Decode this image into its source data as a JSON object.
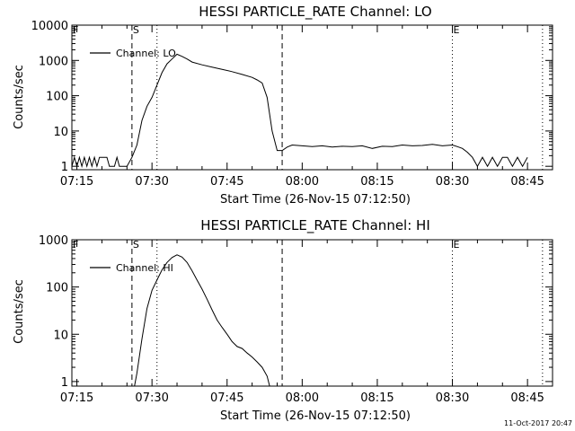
{
  "chart_data": [
    {
      "type": "line",
      "title": "HESSI PARTICLE_RATE Channel: LO",
      "xlabel": "Start Time (26-Nov-15 07:12:50)",
      "ylabel": "Counts/sec",
      "yscale": "log",
      "xlim": [
        "07:14",
        "08:50"
      ],
      "ylim": [
        0.8,
        10000
      ],
      "x_ticks": [
        "07:15",
        "07:30",
        "07:45",
        "08:00",
        "08:15",
        "08:30",
        "08:45"
      ],
      "y_ticks": [
        "1",
        "10",
        "100",
        "1000",
        "10000"
      ],
      "markers": [
        {
          "label": "F",
          "time": "07:14",
          "style": "dotted"
        },
        {
          "label": "S",
          "time": "07:26",
          "style": "dashed"
        },
        {
          "label": "",
          "time": "07:31",
          "style": "dotted"
        },
        {
          "label": "",
          "time": "07:56",
          "style": "dashed"
        },
        {
          "label": "E",
          "time": "08:30",
          "style": "dotted"
        },
        {
          "label": "",
          "time": "08:48",
          "style": "dotted"
        }
      ],
      "legend": "top-left",
      "series": [
        {
          "name": "Channel: LO",
          "points": [
            [
              "07:14",
              1
            ],
            [
              "07:14.5",
              1.8
            ],
            [
              "07:15",
              1
            ],
            [
              "07:15.5",
              1.8
            ],
            [
              "07:16",
              1
            ],
            [
              "07:16.5",
              1.8
            ],
            [
              "07:17",
              1
            ],
            [
              "07:17.5",
              1.8
            ],
            [
              "07:18",
              1
            ],
            [
              "07:18.5",
              1.8
            ],
            [
              "07:19",
              1
            ],
            [
              "07:19.5",
              1.8
            ],
            [
              "07:20",
              1.8
            ],
            [
              "07:21",
              1.8
            ],
            [
              "07:21.5",
              1
            ],
            [
              "07:22.5",
              1
            ],
            [
              "07:23",
              1.8
            ],
            [
              "07:23.5",
              1
            ],
            [
              "07:25",
              1
            ],
            [
              "07:26",
              1.8
            ],
            [
              "07:27",
              4
            ],
            [
              "07:28",
              20
            ],
            [
              "07:29",
              50
            ],
            [
              "07:30",
              90
            ],
            [
              "07:31",
              200
            ],
            [
              "07:32",
              450
            ],
            [
              "07:33",
              800
            ],
            [
              "07:34",
              1100
            ],
            [
              "07:35",
              1500
            ],
            [
              "07:36",
              1300
            ],
            [
              "07:37",
              1100
            ],
            [
              "07:38",
              900
            ],
            [
              "07:40",
              750
            ],
            [
              "07:42",
              650
            ],
            [
              "07:44",
              560
            ],
            [
              "07:46",
              480
            ],
            [
              "07:48",
              400
            ],
            [
              "07:50",
              330
            ],
            [
              "07:51",
              280
            ],
            [
              "07:52",
              230
            ],
            [
              "07:53",
              90
            ],
            [
              "07:54",
              10
            ],
            [
              "07:55",
              2.8
            ],
            [
              "07:56",
              2.8
            ],
            [
              "07:57",
              3.5
            ],
            [
              "07:58",
              4
            ],
            [
              "08:00",
              3.8
            ],
            [
              "08:02",
              3.6
            ],
            [
              "08:04",
              3.8
            ],
            [
              "08:06",
              3.5
            ],
            [
              "08:08",
              3.7
            ],
            [
              "08:10",
              3.6
            ],
            [
              "08:12",
              3.8
            ],
            [
              "08:14",
              3.2
            ],
            [
              "08:16",
              3.7
            ],
            [
              "08:18",
              3.6
            ],
            [
              "08:20",
              4
            ],
            [
              "08:22",
              3.8
            ],
            [
              "08:24",
              3.9
            ],
            [
              "08:26",
              4.2
            ],
            [
              "08:28",
              3.8
            ],
            [
              "08:30",
              4
            ],
            [
              "08:31",
              3.6
            ],
            [
              "08:32",
              3.2
            ],
            [
              "08:33",
              2.5
            ],
            [
              "08:34",
              1.8
            ],
            [
              "08:35",
              1
            ],
            [
              "08:36",
              1.8
            ],
            [
              "08:37",
              1
            ],
            [
              "08:38",
              1.8
            ],
            [
              "08:39",
              1
            ],
            [
              "08:40",
              1.8
            ],
            [
              "08:41",
              1.8
            ],
            [
              "08:42",
              1
            ],
            [
              "08:43",
              1.8
            ],
            [
              "08:44",
              1
            ],
            [
              "08:45",
              1.8
            ]
          ]
        }
      ]
    },
    {
      "type": "line",
      "title": "HESSI PARTICLE_RATE Channel: HI",
      "xlabel": "Start Time (26-Nov-15 07:12:50)",
      "ylabel": "Counts/sec",
      "yscale": "log",
      "xlim": [
        "07:14",
        "08:50"
      ],
      "ylim": [
        0.8,
        1000
      ],
      "x_ticks": [
        "07:15",
        "07:30",
        "07:45",
        "08:00",
        "08:15",
        "08:30",
        "08:45"
      ],
      "y_ticks": [
        "1",
        "10",
        "100",
        "1000"
      ],
      "markers": [
        {
          "label": "F",
          "time": "07:14",
          "style": "dotted"
        },
        {
          "label": "S",
          "time": "07:26",
          "style": "dashed"
        },
        {
          "label": "",
          "time": "07:31",
          "style": "dotted"
        },
        {
          "label": "",
          "time": "07:56",
          "style": "dashed"
        },
        {
          "label": "E",
          "time": "08:30",
          "style": "dotted"
        },
        {
          "label": "",
          "time": "08:48",
          "style": "dotted"
        }
      ],
      "legend": "top-left",
      "series": [
        {
          "name": "Channel: HI",
          "points": [
            [
              "07:26.5",
              0.8
            ],
            [
              "07:27",
              1.5
            ],
            [
              "07:28",
              8
            ],
            [
              "07:29",
              35
            ],
            [
              "07:30",
              85
            ],
            [
              "07:31",
              140
            ],
            [
              "07:32",
              230
            ],
            [
              "07:33",
              330
            ],
            [
              "07:34",
              420
            ],
            [
              "07:35",
              480
            ],
            [
              "07:36",
              430
            ],
            [
              "07:37",
              330
            ],
            [
              "07:38",
              220
            ],
            [
              "07:39",
              140
            ],
            [
              "07:40",
              90
            ],
            [
              "07:41",
              55
            ],
            [
              "07:42",
              33
            ],
            [
              "07:43",
              20
            ],
            [
              "07:44",
              14
            ],
            [
              "07:45",
              10
            ],
            [
              "07:46",
              7
            ],
            [
              "07:47",
              5.5
            ],
            [
              "07:48",
              5
            ],
            [
              "07:49",
              4
            ],
            [
              "07:50",
              3.3
            ],
            [
              "07:51",
              2.6
            ],
            [
              "07:52",
              2
            ],
            [
              "07:53",
              1.3
            ],
            [
              "07:53.5",
              0.8
            ]
          ]
        }
      ]
    }
  ],
  "footer": {
    "timestamp": "11-Oct-2017 20:47"
  }
}
